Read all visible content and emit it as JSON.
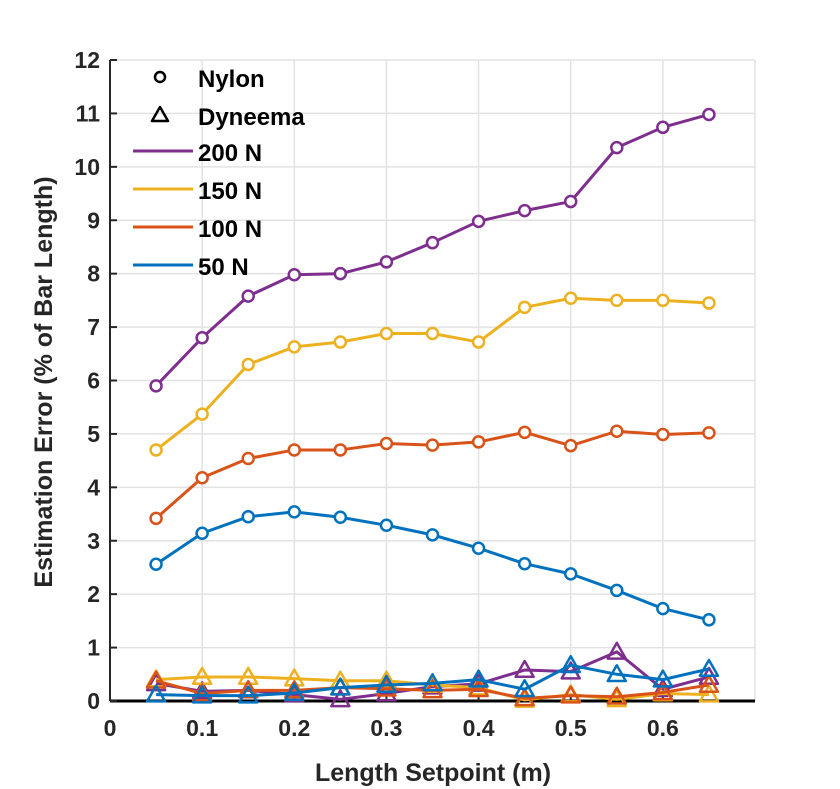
{
  "chart_data": {
    "type": "line",
    "title": "",
    "xlabel": "Length Setpoint (m)",
    "ylabel": "Estimation Error (% of Bar Length)",
    "xlim": [
      0,
      0.7
    ],
    "ylim": [
      0,
      12
    ],
    "xticks": [
      "0",
      "0.1",
      "0.2",
      "0.3",
      "0.4",
      "0.5",
      "0.6"
    ],
    "yticks": [
      "0",
      "1",
      "2",
      "3",
      "4",
      "5",
      "6",
      "7",
      "8",
      "9",
      "10",
      "11",
      "12"
    ],
    "grid": true,
    "legend_position": "top-left",
    "legend": {
      "markers": [
        {
          "label": "Nylon",
          "marker": "circle"
        },
        {
          "label": "Dyneema",
          "marker": "triangle"
        }
      ],
      "lines": [
        {
          "label": "200 N",
          "color": "#7E2F8E"
        },
        {
          "label": "150 N",
          "color": "#EDB120"
        },
        {
          "label": "100 N",
          "color": "#D95319"
        },
        {
          "label": "50 N",
          "color": "#0072BD"
        }
      ]
    },
    "x": [
      0.05,
      0.1,
      0.15,
      0.2,
      0.25,
      0.3,
      0.35,
      0.4,
      0.45,
      0.5,
      0.55,
      0.6,
      0.65
    ],
    "series": [
      {
        "name": "200 N Dyneema",
        "material": "Dyneema",
        "marker": "triangle",
        "color": "#7E2F8E",
        "values": [
          0.33,
          0.18,
          0.2,
          0.12,
          0.03,
          0.14,
          0.27,
          0.32,
          0.58,
          0.55,
          0.92,
          0.22,
          0.45
        ]
      },
      {
        "name": "150 N Dyneema",
        "material": "Dyneema",
        "marker": "triangle",
        "color": "#EDB120",
        "values": [
          0.4,
          0.45,
          0.45,
          0.42,
          0.38,
          0.38,
          0.3,
          0.25,
          0.02,
          0.12,
          0.03,
          0.14,
          0.12
        ]
      },
      {
        "name": "100 N Dyneema",
        "material": "Dyneema",
        "marker": "triangle",
        "color": "#D95319",
        "values": [
          0.38,
          0.14,
          0.2,
          0.2,
          0.25,
          0.23,
          0.2,
          0.22,
          0.05,
          0.1,
          0.08,
          0.16,
          0.3
        ]
      },
      {
        "name": "50 N Dyneema",
        "material": "Dyneema",
        "marker": "triangle",
        "color": "#0072BD",
        "values": [
          0.12,
          0.1,
          0.1,
          0.15,
          0.25,
          0.3,
          0.33,
          0.4,
          0.22,
          0.67,
          0.5,
          0.4,
          0.6
        ]
      },
      {
        "name": "200 N Nylon",
        "material": "Nylon",
        "marker": "circle",
        "color": "#7E2F8E",
        "values": [
          5.9,
          6.8,
          7.58,
          7.98,
          8.0,
          8.22,
          8.58,
          8.98,
          9.18,
          9.35,
          10.36,
          10.74,
          10.98
        ]
      },
      {
        "name": "150 N Nylon",
        "material": "Nylon",
        "marker": "circle",
        "color": "#EDB120",
        "values": [
          4.7,
          5.37,
          6.3,
          6.63,
          6.72,
          6.88,
          6.88,
          6.72,
          7.37,
          7.54,
          7.5,
          7.5,
          7.45
        ]
      },
      {
        "name": "100 N Nylon",
        "material": "Nylon",
        "marker": "circle",
        "color": "#D95319",
        "values": [
          3.42,
          4.18,
          4.54,
          4.7,
          4.7,
          4.82,
          4.79,
          4.85,
          5.03,
          4.78,
          5.05,
          4.99,
          5.02
        ]
      },
      {
        "name": "50 N Nylon",
        "material": "Nylon",
        "marker": "circle",
        "color": "#0072BD",
        "values": [
          2.56,
          3.14,
          3.45,
          3.54,
          3.44,
          3.29,
          3.11,
          2.86,
          2.57,
          2.38,
          2.07,
          1.73,
          1.52
        ]
      }
    ]
  }
}
